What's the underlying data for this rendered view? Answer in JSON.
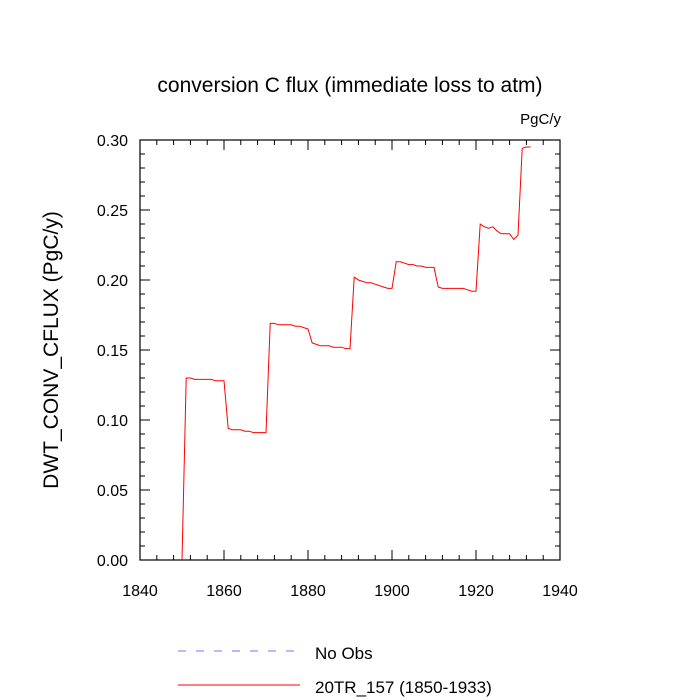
{
  "chart_data": {
    "type": "line",
    "title": "conversion C flux (immediate loss to atm)",
    "units": "PgC/y",
    "xlabel": "",
    "ylabel": "DWT_CONV_CFLUX  (PgC/y)",
    "xlim": [
      1840,
      1940
    ],
    "ylim": [
      0.0,
      0.3
    ],
    "x_ticks": [
      1840,
      1860,
      1880,
      1900,
      1920,
      1940
    ],
    "x_tick_labels": [
      "1840",
      "1860",
      "1880",
      "1900",
      "1920",
      "1940"
    ],
    "y_ticks": [
      0.0,
      0.05,
      0.1,
      0.15,
      0.2,
      0.25,
      0.3
    ],
    "y_tick_labels": [
      "0.00",
      "0.05",
      "0.10",
      "0.15",
      "0.20",
      "0.25",
      "0.30"
    ],
    "grid": false,
    "legend_position": "bottom",
    "series": [
      {
        "name": "No Obs",
        "color": "#7070ff",
        "dashed": true,
        "x": [],
        "values": []
      },
      {
        "name": "20TR_157 (1850-1933)",
        "color": "#ff0000",
        "dashed": false,
        "x": [
          1850,
          1851,
          1852,
          1853,
          1854,
          1855,
          1856,
          1857,
          1858,
          1859,
          1860,
          1861,
          1862,
          1863,
          1864,
          1865,
          1866,
          1867,
          1868,
          1869,
          1870,
          1871,
          1872,
          1873,
          1874,
          1875,
          1876,
          1877,
          1878,
          1879,
          1880,
          1881,
          1882,
          1883,
          1884,
          1885,
          1886,
          1887,
          1888,
          1889,
          1890,
          1891,
          1892,
          1893,
          1894,
          1895,
          1896,
          1897,
          1898,
          1899,
          1900,
          1901,
          1902,
          1903,
          1904,
          1905,
          1906,
          1907,
          1908,
          1909,
          1910,
          1911,
          1912,
          1913,
          1914,
          1915,
          1916,
          1917,
          1918,
          1919,
          1920,
          1921,
          1922,
          1923,
          1924,
          1925,
          1926,
          1927,
          1928,
          1929,
          1930,
          1931,
          1932,
          1933
        ],
        "values": [
          0.0,
          0.13,
          0.13,
          0.129,
          0.129,
          0.129,
          0.129,
          0.129,
          0.128,
          0.128,
          0.128,
          0.094,
          0.093,
          0.093,
          0.093,
          0.092,
          0.092,
          0.091,
          0.091,
          0.091,
          0.091,
          0.169,
          0.169,
          0.168,
          0.168,
          0.168,
          0.168,
          0.167,
          0.167,
          0.166,
          0.165,
          0.155,
          0.154,
          0.153,
          0.153,
          0.153,
          0.152,
          0.152,
          0.152,
          0.151,
          0.151,
          0.202,
          0.2,
          0.199,
          0.198,
          0.198,
          0.197,
          0.196,
          0.195,
          0.194,
          0.194,
          0.213,
          0.213,
          0.212,
          0.211,
          0.211,
          0.21,
          0.21,
          0.209,
          0.209,
          0.209,
          0.195,
          0.194,
          0.194,
          0.194,
          0.194,
          0.194,
          0.194,
          0.193,
          0.192,
          0.192,
          0.24,
          0.238,
          0.237,
          0.238,
          0.235,
          0.233,
          0.233,
          0.233,
          0.229,
          0.232,
          0.294,
          0.295,
          0.295
        ]
      }
    ]
  }
}
